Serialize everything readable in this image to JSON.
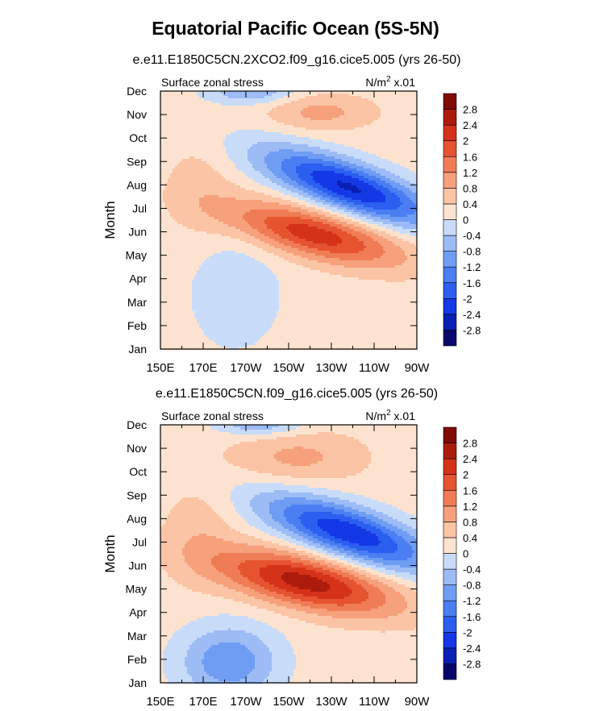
{
  "figure": {
    "title": "Equatorial Pacific Ocean (5S-5N)"
  },
  "chart_data": [
    {
      "type": "heatmap",
      "title": "e.e11.E1850C5CN.2XCO2.f09_g16.cice5.005 (yrs 26-50)",
      "left_label": "Surface zonal stress",
      "units_label": "N/m",
      "units_sup": "2",
      "units_scale": "x.01",
      "ylabel": "Month",
      "x_ticks": [
        "150E",
        "170E",
        "170W",
        "150W",
        "130W",
        "110W",
        "90W"
      ],
      "x_range_deg_east": [
        150,
        270
      ],
      "y_ticks": [
        "Jan",
        "Feb",
        "Mar",
        "Apr",
        "May",
        "Jun",
        "Jul",
        "Aug",
        "Sep",
        "Oct",
        "Nov",
        "Dec"
      ],
      "colorbar_levels": [
        "-2.8",
        "-2.4",
        "-2",
        "-1.6",
        "-1.2",
        "-0.8",
        "-0.4",
        "0",
        "0.4",
        "0.8",
        "1.2",
        "1.6",
        "2",
        "2.4",
        "2.8"
      ],
      "features": [
        {
          "kind": "negative",
          "center_lon": 235,
          "center_month": 6.9,
          "peak": -2.6
        },
        {
          "kind": "positive",
          "center_lon": 222,
          "center_month": 4.9,
          "peak": 2.1
        },
        {
          "kind": "negative",
          "center_lon": 185,
          "center_month": 2.6,
          "peak": -0.6
        },
        {
          "kind": "positive",
          "center_lon": 225,
          "center_month": 10.0,
          "peak": 0.9
        },
        {
          "kind": "negative",
          "center_lon": 190,
          "center_month": 11.0,
          "peak": -1.0
        }
      ]
    },
    {
      "type": "heatmap",
      "title": "e.e11.E1850C5CN.f09_g16.cice5.005 (yrs 26-50)",
      "left_label": "Surface zonal stress",
      "units_label": "N/m",
      "units_sup": "2",
      "units_scale": "x.01",
      "ylabel": "Month",
      "x_ticks": [
        "150E",
        "170E",
        "170W",
        "150W",
        "130W",
        "110W",
        "90W"
      ],
      "x_range_deg_east": [
        150,
        270
      ],
      "y_ticks": [
        "Jan",
        "Feb",
        "Mar",
        "Apr",
        "May",
        "Jun",
        "Jul",
        "Aug",
        "Sep",
        "Oct",
        "Nov",
        "Dec"
      ],
      "colorbar_levels": [
        "-2.8",
        "-2.4",
        "-2",
        "-1.6",
        "-1.2",
        "-0.8",
        "-0.4",
        "0",
        "0.4",
        "0.8",
        "1.2",
        "1.6",
        "2",
        "2.4",
        "2.8"
      ],
      "features": [
        {
          "kind": "negative",
          "center_lon": 238,
          "center_month": 6.3,
          "peak": -2.5
        },
        {
          "kind": "positive",
          "center_lon": 218,
          "center_month": 4.2,
          "peak": 2.4
        },
        {
          "kind": "negative",
          "center_lon": 185,
          "center_month": 1.0,
          "peak": -1.4
        },
        {
          "kind": "positive",
          "center_lon": 215,
          "center_month": 9.5,
          "peak": 0.8
        },
        {
          "kind": "negative",
          "center_lon": 195,
          "center_month": 11.0,
          "peak": -1.0
        }
      ]
    }
  ],
  "colors": {
    "scale": [
      "#08086c",
      "#0a1fb4",
      "#1438e6",
      "#2b5ff0",
      "#4a7ef2",
      "#6f9df4",
      "#9dbcf6",
      "#c8dcfa",
      "#fde3cf",
      "#fbc4a4",
      "#f6a17c",
      "#f07c56",
      "#e55330",
      "#d5321a",
      "#ac1c0c",
      "#7f0c05"
    ]
  }
}
